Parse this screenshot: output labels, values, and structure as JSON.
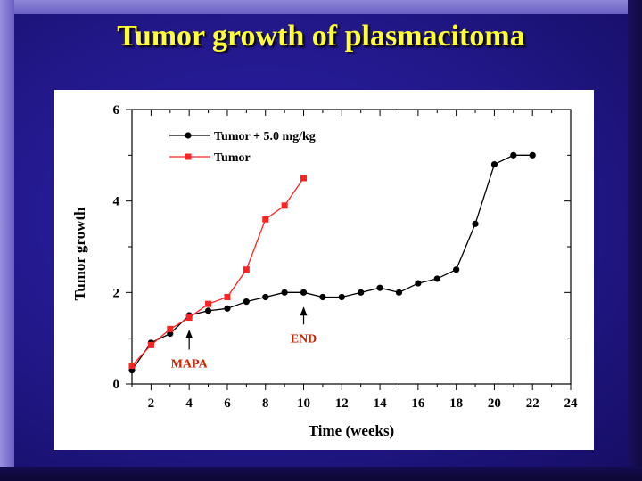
{
  "slide": {
    "title": "Tumor growth of plasmacitoma"
  },
  "colors": {
    "title": "#ffff33",
    "background": "#22188a",
    "treated_series": "#000000",
    "control_series": "#ff2222",
    "annotation": "#cc2200"
  },
  "chart_data": {
    "type": "line",
    "title": "",
    "xlabel": "Time (weeks)",
    "ylabel": "Tumor growth",
    "xlim": [
      1,
      24
    ],
    "ylim": [
      0,
      6
    ],
    "x_ticks": [
      2,
      4,
      6,
      8,
      10,
      12,
      14,
      16,
      18,
      20,
      22,
      24
    ],
    "y_ticks": [
      0,
      2,
      4,
      6
    ],
    "grid": false,
    "legend_position": "top-left",
    "series": [
      {
        "name": "Tumor + 5.0 mg/kg",
        "color": "#000000",
        "marker": "circle",
        "x": [
          1,
          2,
          3,
          4,
          5,
          6,
          7,
          8,
          9,
          10,
          11,
          12,
          13,
          14,
          15,
          16,
          17,
          18,
          19,
          20,
          21,
          22
        ],
        "y": [
          0.3,
          0.9,
          1.1,
          1.5,
          1.6,
          1.65,
          1.8,
          1.9,
          2.0,
          2.0,
          1.9,
          1.9,
          2.0,
          2.1,
          2.0,
          2.2,
          2.3,
          2.5,
          3.5,
          4.8,
          5.0,
          5.0
        ]
      },
      {
        "name": "Tumor",
        "color": "#ff2222",
        "marker": "square",
        "x": [
          1,
          2,
          3,
          4,
          5,
          6,
          7,
          8,
          9,
          10
        ],
        "y": [
          0.4,
          0.85,
          1.2,
          1.45,
          1.75,
          1.9,
          2.5,
          3.6,
          3.9,
          4.5
        ]
      }
    ],
    "annotations": [
      {
        "text": "MAPA",
        "x": 4,
        "y": 1.15
      },
      {
        "text": "END",
        "x": 10,
        "y": 1.65
      }
    ]
  }
}
